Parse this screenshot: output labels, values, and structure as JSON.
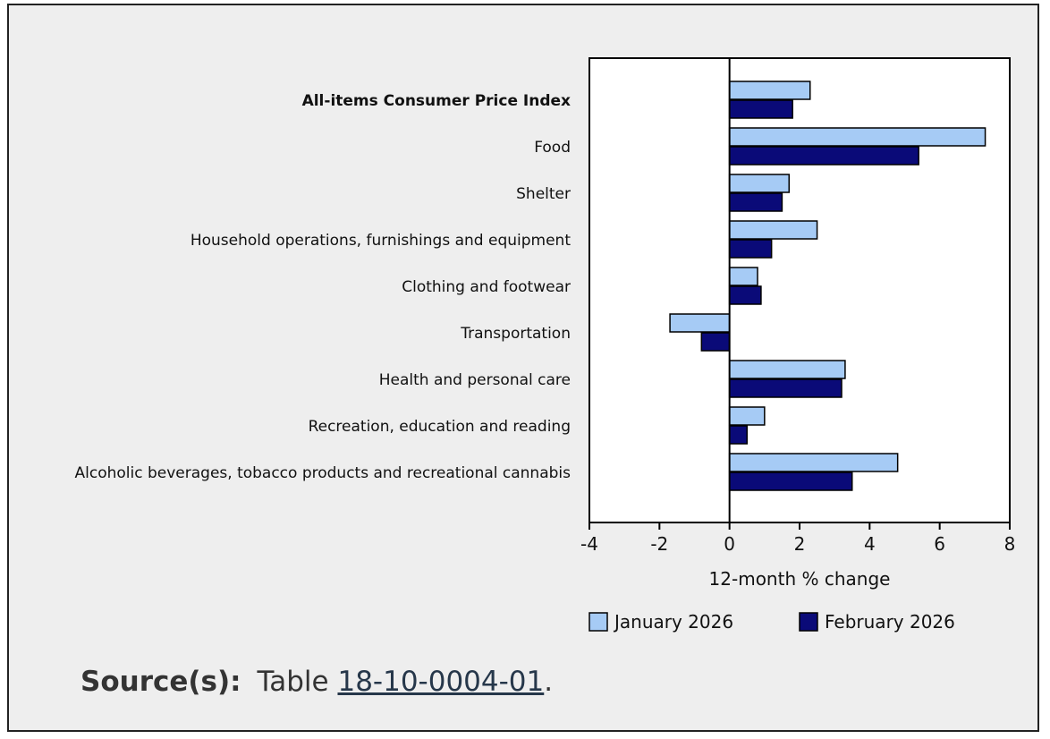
{
  "chart_data": {
    "type": "bar",
    "orientation": "horizontal",
    "categories": [
      "All-items Consumer Price Index",
      "Food",
      "Shelter",
      "Household operations, furnishings and equipment",
      "Clothing and footwear",
      "Transportation",
      "Health and personal care",
      "Recreation, education and reading",
      "Alcoholic beverages, tobacco products and recreational cannabis"
    ],
    "emphasized_category": "All-items Consumer Price Index",
    "series": [
      {
        "name": "January 2026",
        "color": "#a6cbf5",
        "values": [
          2.3,
          7.3,
          1.7,
          2.5,
          0.8,
          -1.7,
          3.3,
          1.0,
          4.8
        ]
      },
      {
        "name": "February 2026",
        "color": "#0a0a78",
        "values": [
          1.8,
          5.4,
          1.5,
          1.2,
          0.9,
          -0.8,
          3.2,
          0.5,
          3.5
        ]
      }
    ],
    "xlabel": "12-month % change",
    "xlim": [
      -4,
      8
    ],
    "xticks": [
      "-4",
      "-2",
      "0",
      "2",
      "4",
      "6",
      "8"
    ],
    "legend_position": "bottom"
  },
  "source": {
    "label": "Source(s):",
    "prefix": "Table",
    "link_text": "18-10-0004-01",
    "suffix": "."
  }
}
